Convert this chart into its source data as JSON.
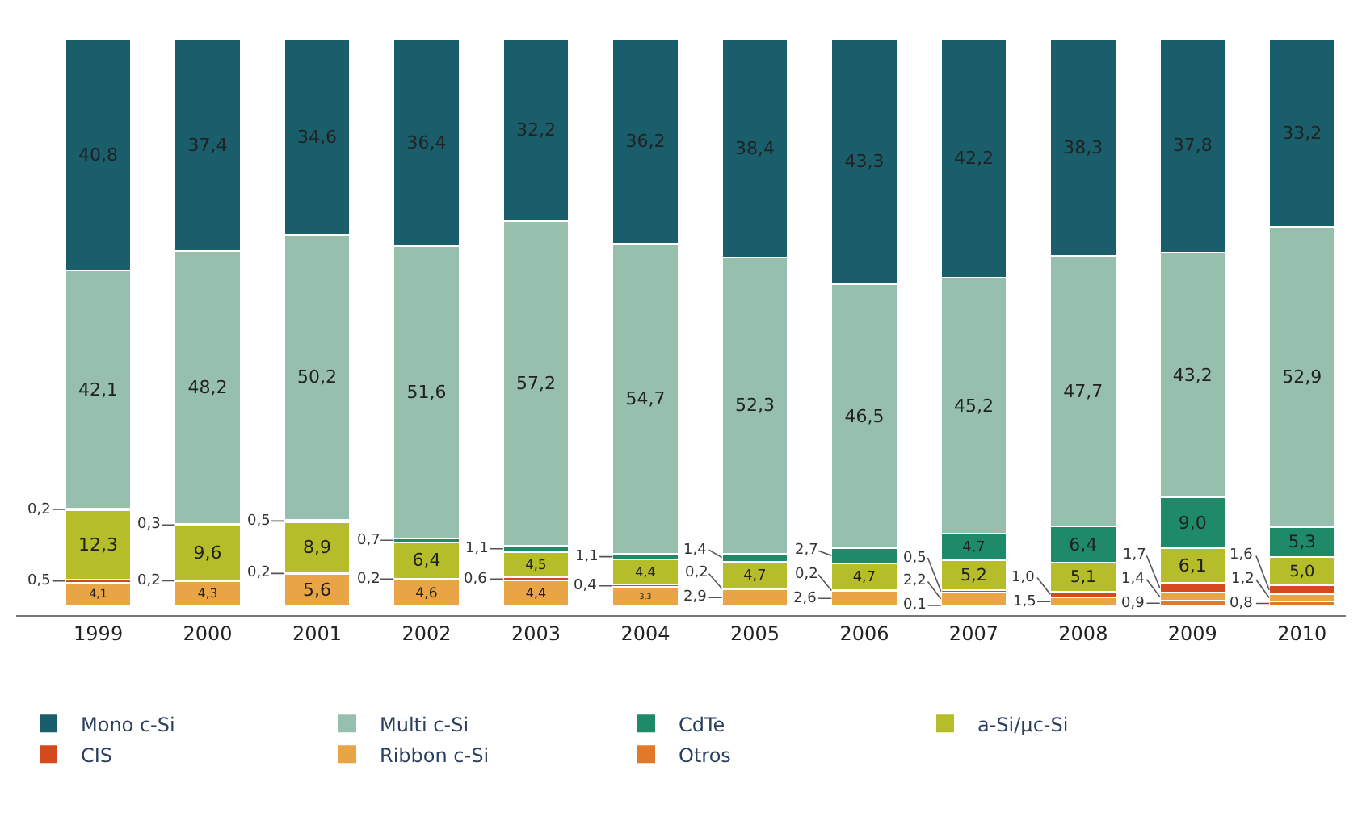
{
  "chart_data": {
    "type": "bar",
    "stacked": true,
    "tick_labels": "x",
    "legend": "bottom",
    "categories": [
      "1999",
      "2000",
      "2001",
      "2002",
      "2003",
      "2004",
      "2005",
      "2006",
      "2007",
      "2008",
      "2009",
      "2010"
    ],
    "series": [
      {
        "name": "Otros",
        "color": "#e07a2a",
        "values": [
          null,
          null,
          null,
          null,
          null,
          null,
          null,
          null,
          0.1,
          null,
          0.9,
          0.8
        ],
        "value_labels": [
          null,
          null,
          null,
          null,
          null,
          null,
          null,
          null,
          "0,1",
          null,
          "0,9",
          "0,8"
        ]
      },
      {
        "name": "Ribbon c-Si",
        "color": "#e8a445",
        "values": [
          4.1,
          4.3,
          5.6,
          4.6,
          4.4,
          3.3,
          2.9,
          2.6,
          2.2,
          1.5,
          1.4,
          1.2
        ],
        "value_labels": [
          "4,1",
          "4,3",
          "5,6",
          "4,6",
          "4,4",
          "3,3",
          "2,9",
          "2,6",
          "2,2",
          "1,5",
          "1,4",
          "1,2"
        ]
      },
      {
        "name": "CIS",
        "color": "#d44a1e",
        "values": [
          0.5,
          0.2,
          0.2,
          0.2,
          0.6,
          0.4,
          0.2,
          0.2,
          0.5,
          1.0,
          1.7,
          1.6
        ],
        "value_labels": [
          "0,5",
          "0,2",
          "0,2",
          "0,2",
          "0,6",
          "0,4",
          "0,2",
          "0,2",
          "0,5",
          "1,0",
          "1,7",
          "1,6"
        ]
      },
      {
        "name": "a-Si/µc-Si",
        "color": "#b5bd2a",
        "values": [
          12.3,
          9.6,
          8.9,
          6.4,
          4.5,
          4.4,
          4.7,
          4.7,
          5.2,
          5.1,
          6.1,
          5.0
        ],
        "value_labels": [
          "12,3",
          "9,6",
          "8,9",
          "6,4",
          "4,5",
          "4,4",
          "4,7",
          "4,7",
          "5,2",
          "5,1",
          "6,1",
          "5,0"
        ]
      },
      {
        "name": "CdTe",
        "color": "#1f8a68",
        "values": [
          0.2,
          0.3,
          0.5,
          0.7,
          1.1,
          1.1,
          1.4,
          2.7,
          4.7,
          6.4,
          9.0,
          5.3
        ],
        "value_labels": [
          "0,2",
          "0,3",
          "0,5",
          "0,7",
          "1,1",
          "1,1",
          "1,4",
          "2,7",
          "4,7",
          "6,4",
          "9,0",
          "5,3"
        ]
      },
      {
        "name": "Multi c-Si",
        "color": "#97bfae",
        "values": [
          42.1,
          48.2,
          50.2,
          51.6,
          57.2,
          54.7,
          52.3,
          46.5,
          45.2,
          47.7,
          43.2,
          52.9
        ],
        "value_labels": [
          "42,1",
          "48,2",
          "50,2",
          "51,6",
          "57,2",
          "54,7",
          "52,3",
          "46,5",
          "45,2",
          "47,7",
          "43,2",
          "52,9"
        ]
      },
      {
        "name": "Mono c-Si",
        "color": "#1a5e6b",
        "values": [
          40.8,
          37.4,
          34.6,
          36.4,
          32.2,
          36.2,
          38.4,
          43.3,
          42.2,
          38.3,
          37.8,
          33.2
        ],
        "value_labels": [
          "40,8",
          "37,4",
          "34,6",
          "36,4",
          "32,2",
          "36,2",
          "38,4",
          "43,3",
          "42,2",
          "38,3",
          "37,8",
          "33,2"
        ]
      }
    ]
  }
}
